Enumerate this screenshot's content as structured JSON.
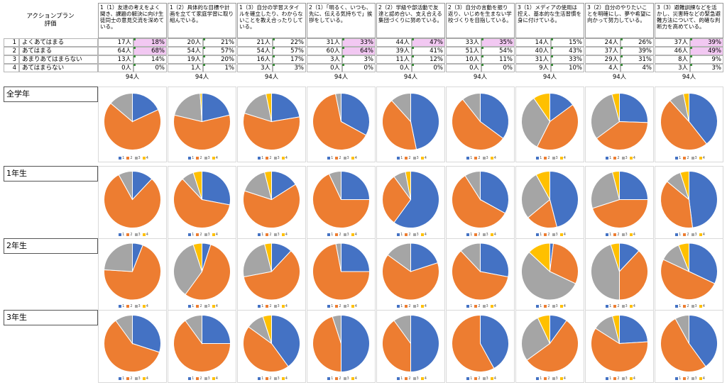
{
  "header": {
    "corner_line1": "アクションプラン",
    "corner_line2": "評価",
    "questions": [
      "1（1）友達の考えをよく聞き、課題の解決に向け生徒同士の意見交流を深めている。",
      "1（2）具体的な目標や計画を立てて家庭学習に取り組んでいる。",
      "1（3）自分の学習スタイルを確立したり、わからないことを教え合ったりしている。",
      "2（1）「明るく、いつも、先に、伝える気持ちで」挨拶をしている。",
      "2（2）学級や部活動で友達と認め合い、支え合える集団づくりに努めている。",
      "2（3）自分の言動を振り返り、いじめを生まない学校づくりを目指している。",
      "3（1）メディアの使用は控え、基本的な生活習慣を身に付けている。",
      "3（2）自分のやりたいことを明確にし、夢や希望に向かって努力している。",
      "3（3）避難訓練などを活かし、災害時などの緊急避難方法について、的確な判断力を高めている。"
    ]
  },
  "rows": [
    {
      "index": "1",
      "label": "よくあてはまる",
      "cells": [
        [
          "17人",
          "18%"
        ],
        [
          "20人",
          "21%"
        ],
        [
          "21人",
          "22%"
        ],
        [
          "31人",
          "33%"
        ],
        [
          "44人",
          "47%"
        ],
        [
          "33人",
          "35%"
        ],
        [
          "14人",
          "15%"
        ],
        [
          "24人",
          "26%"
        ],
        [
          "37人",
          "39%"
        ]
      ],
      "highlight": [
        0,
        3,
        4,
        5,
        8
      ]
    },
    {
      "index": "2",
      "label": "あてはまる",
      "cells": [
        [
          "64人",
          "68%"
        ],
        [
          "54人",
          "57%"
        ],
        [
          "54人",
          "57%"
        ],
        [
          "60人",
          "64%"
        ],
        [
          "39人",
          "41%"
        ],
        [
          "51人",
          "54%"
        ],
        [
          "40人",
          "43%"
        ],
        [
          "37人",
          "39%"
        ],
        [
          "46人",
          "49%"
        ]
      ],
      "highlight": [
        0,
        3,
        8
      ]
    },
    {
      "index": "3",
      "label": "あまりあてはまらない",
      "cells": [
        [
          "13人",
          "14%"
        ],
        [
          "19人",
          "20%"
        ],
        [
          "16人",
          "17%"
        ],
        [
          "3人",
          "3%"
        ],
        [
          "11人",
          "12%"
        ],
        [
          "10人",
          "11%"
        ],
        [
          "31人",
          "33%"
        ],
        [
          "29人",
          "31%"
        ],
        [
          "8人",
          "9%"
        ]
      ],
      "highlight": []
    },
    {
      "index": "4",
      "label": "あてはまらない",
      "cells": [
        [
          "0人",
          "0%"
        ],
        [
          "1人",
          "1%"
        ],
        [
          "3人",
          "3%"
        ],
        [
          "0人",
          "0%"
        ],
        [
          "0人",
          "0%"
        ],
        [
          "0人",
          "0%"
        ],
        [
          "9人",
          "10%"
        ],
        [
          "4人",
          "4%"
        ],
        [
          "3人",
          "3%"
        ]
      ],
      "highlight": []
    }
  ],
  "totals": [
    "94人",
    "94人",
    "94人",
    "94人",
    "94人",
    "94人",
    "94人",
    "94人",
    "94人"
  ],
  "grades": [
    "全学年",
    "1年生",
    "2年生",
    "3年生"
  ],
  "legend_labels": [
    "1",
    "2",
    "3",
    "4"
  ],
  "colors": {
    "s1": "#4472c4",
    "s2": "#ed7d31",
    "s3": "#a5a5a5",
    "s4": "#ffc000",
    "highlight": "#f2c8f2"
  },
  "chart_data": {
    "type": "pie",
    "series_labels": [
      "1",
      "2",
      "3",
      "4"
    ],
    "charts": [
      {
        "group": "全学年",
        "values": [
          [
            17,
            64,
            13,
            0
          ],
          [
            20,
            54,
            19,
            1
          ],
          [
            21,
            54,
            16,
            3
          ],
          [
            31,
            60,
            3,
            0
          ],
          [
            44,
            39,
            11,
            0
          ],
          [
            33,
            51,
            10,
            0
          ],
          [
            14,
            40,
            31,
            9
          ],
          [
            24,
            37,
            29,
            4
          ],
          [
            37,
            46,
            8,
            3
          ]
        ]
      },
      {
        "group": "1年生",
        "values": [
          [
            12,
            80,
            8,
            0
          ],
          [
            28,
            60,
            7,
            5
          ],
          [
            16,
            64,
            16,
            4
          ],
          [
            25,
            68,
            7,
            0
          ],
          [
            60,
            30,
            7,
            3
          ],
          [
            33,
            58,
            9,
            0
          ],
          [
            46,
            18,
            28,
            8
          ],
          [
            25,
            45,
            26,
            4
          ],
          [
            48,
            38,
            9,
            5
          ]
        ]
      },
      {
        "group": "2年生",
        "values": [
          [
            6,
            70,
            24,
            0
          ],
          [
            5,
            55,
            35,
            5
          ],
          [
            12,
            60,
            24,
            4
          ],
          [
            25,
            72,
            3,
            0
          ],
          [
            20,
            65,
            15,
            0
          ],
          [
            28,
            60,
            12,
            0
          ],
          [
            2,
            30,
            55,
            13
          ],
          [
            12,
            38,
            45,
            5
          ],
          [
            32,
            50,
            12,
            6
          ]
        ]
      },
      {
        "group": "3年生",
        "values": [
          [
            30,
            60,
            10,
            0
          ],
          [
            25,
            65,
            10,
            0
          ],
          [
            40,
            45,
            10,
            5
          ],
          [
            50,
            45,
            5,
            0
          ],
          [
            50,
            40,
            10,
            0
          ],
          [
            42,
            58,
            0,
            0
          ],
          [
            10,
            55,
            28,
            7
          ],
          [
            24,
            60,
            12,
            4
          ],
          [
            40,
            52,
            8,
            0
          ]
        ]
      }
    ]
  }
}
